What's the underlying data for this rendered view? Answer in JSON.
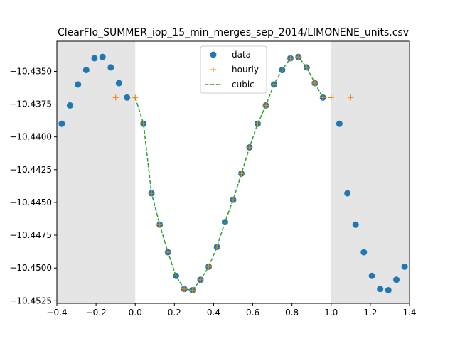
{
  "chart_data": {
    "type": "line",
    "title": "ClearFlo_SUMMER_iop_15_min_merges_sep_2014/LIMONENE_units.csv",
    "xlabel": "",
    "ylabel": "",
    "xlim": [
      -0.4,
      1.4
    ],
    "ylim": [
      -10.4527,
      -10.4327
    ],
    "xticks": [
      -0.4,
      -0.2,
      0.0,
      0.2,
      0.4,
      0.6,
      0.8,
      1.0,
      1.2,
      1.4
    ],
    "xtick_labels": [
      "−0.4",
      "−0.2",
      "0.0",
      "0.2",
      "0.4",
      "0.6",
      "0.8",
      "1.0",
      "1.2",
      "1.4"
    ],
    "yticks": [
      -10.435,
      -10.4375,
      -10.44,
      -10.4425,
      -10.445,
      -10.4475,
      -10.45,
      -10.4525
    ],
    "ytick_labels": [
      "−10.4350",
      "−10.4375",
      "−10.4400",
      "−10.4425",
      "−10.4450",
      "−10.4475",
      "−10.4500",
      "−10.4525"
    ],
    "shaded_regions": [
      [
        -0.4,
        0.0
      ],
      [
        1.0,
        1.4
      ]
    ],
    "legend": {
      "placement": "top-center",
      "entries": [
        "data",
        "hourly",
        "cubic"
      ]
    },
    "colors": {
      "data": "#1f77b4",
      "hourly": "#ff7f0e",
      "cubic": "#2ca02c",
      "shade": "#e5e5e5"
    },
    "series": [
      {
        "name": "data",
        "style": "marker-circle",
        "x": [
          -0.375,
          -0.333,
          -0.292,
          -0.25,
          -0.208,
          -0.167,
          -0.125,
          -0.083,
          -0.042,
          0.042,
          0.083,
          0.125,
          0.167,
          0.208,
          0.25,
          0.292,
          0.333,
          0.375,
          0.417,
          0.458,
          0.5,
          0.542,
          0.583,
          0.625,
          0.667,
          0.708,
          0.75,
          0.792,
          0.833,
          0.875,
          0.917,
          0.958,
          1.042,
          1.083,
          1.125,
          1.167,
          1.208,
          1.25,
          1.292,
          1.333,
          1.375
        ],
        "y": [
          -10.439,
          -10.4376,
          -10.436,
          -10.4349,
          -10.434,
          -10.4339,
          -10.4347,
          -10.4359,
          -10.437,
          -10.439,
          -10.4443,
          -10.4467,
          -10.4488,
          -10.4506,
          -10.4516,
          -10.4517,
          -10.4509,
          -10.4499,
          -10.4484,
          -10.4465,
          -10.4448,
          -10.4428,
          -10.4408,
          -10.439,
          -10.4376,
          -10.436,
          -10.4349,
          -10.434,
          -10.4339,
          -10.4347,
          -10.4359,
          -10.437,
          -10.439,
          -10.4443,
          -10.4467,
          -10.4488,
          -10.4506,
          -10.4516,
          -10.4517,
          -10.4509,
          -10.4499
        ]
      },
      {
        "name": "hourly",
        "style": "marker-plus",
        "x": [
          -0.1,
          0.0,
          0.042,
          0.083,
          0.125,
          0.167,
          0.208,
          0.25,
          0.292,
          0.333,
          0.375,
          0.417,
          0.458,
          0.5,
          0.542,
          0.583,
          0.625,
          0.667,
          0.708,
          0.75,
          0.792,
          0.833,
          0.875,
          0.917,
          0.958,
          1.0,
          1.1
        ],
        "y": [
          -10.437,
          -10.437,
          -10.439,
          -10.4443,
          -10.4467,
          -10.4488,
          -10.4506,
          -10.4516,
          -10.4517,
          -10.4509,
          -10.4499,
          -10.4484,
          -10.4465,
          -10.4448,
          -10.4428,
          -10.4408,
          -10.439,
          -10.4376,
          -10.436,
          -10.4349,
          -10.434,
          -10.4339,
          -10.4347,
          -10.4359,
          -10.437,
          -10.437,
          -10.437
        ]
      },
      {
        "name": "cubic",
        "style": "dashed-line",
        "x": [
          0.0,
          0.042,
          0.083,
          0.125,
          0.167,
          0.208,
          0.25,
          0.292,
          0.333,
          0.375,
          0.417,
          0.458,
          0.5,
          0.542,
          0.583,
          0.625,
          0.667,
          0.708,
          0.75,
          0.792,
          0.833,
          0.875,
          0.917,
          0.958,
          1.0
        ],
        "y": [
          -10.437,
          -10.439,
          -10.4443,
          -10.4467,
          -10.4488,
          -10.4506,
          -10.4516,
          -10.4517,
          -10.4509,
          -10.4499,
          -10.4484,
          -10.4465,
          -10.4448,
          -10.4428,
          -10.4408,
          -10.439,
          -10.4376,
          -10.436,
          -10.4349,
          -10.434,
          -10.4339,
          -10.4347,
          -10.4359,
          -10.437,
          -10.437
        ]
      }
    ]
  }
}
